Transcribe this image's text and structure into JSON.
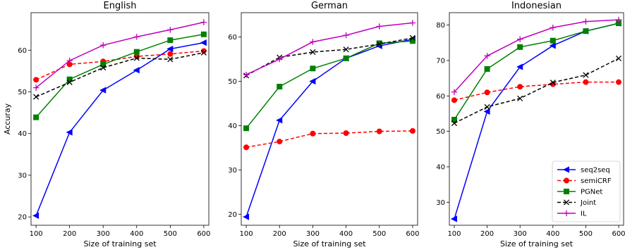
{
  "chart_data": [
    {
      "type": "line",
      "title": "English",
      "xlabel": "Size of training set",
      "ylabel": "Accuray",
      "x": [
        100,
        200,
        300,
        400,
        500,
        600
      ],
      "xlim": [
        85,
        615
      ],
      "ylim": [
        18,
        69
      ],
      "yticks": [
        20,
        30,
        40,
        50,
        60
      ],
      "series": [
        {
          "name": "seq2seq",
          "values": [
            20.3,
            40.3,
            50.4,
            55.2,
            60.3,
            61.8
          ]
        },
        {
          "name": "semiCRF",
          "values": [
            52.9,
            56.6,
            57.3,
            58.5,
            59.1,
            59.8
          ]
        },
        {
          "name": "PGNet",
          "values": [
            43.9,
            53.0,
            56.6,
            59.6,
            62.4,
            63.8
          ]
        },
        {
          "name": "Joint",
          "values": [
            48.8,
            52.3,
            55.8,
            58.1,
            57.8,
            59.4
          ]
        },
        {
          "name": "IL",
          "values": [
            51.0,
            57.5,
            61.2,
            63.2,
            64.9,
            66.7
          ]
        }
      ]
    },
    {
      "type": "line",
      "title": "German",
      "xlabel": "Size of training set",
      "ylabel": "",
      "x": [
        100,
        200,
        300,
        400,
        500,
        600
      ],
      "xlim": [
        85,
        615
      ],
      "ylim": [
        17.5,
        65.5
      ],
      "yticks": [
        20,
        30,
        40,
        50,
        60
      ],
      "series": [
        {
          "name": "seq2seq",
          "values": [
            19.4,
            41.2,
            50.0,
            55.2,
            58.0,
            59.5
          ]
        },
        {
          "name": "semiCRF",
          "values": [
            35.1,
            36.4,
            38.2,
            38.3,
            38.7,
            38.8
          ]
        },
        {
          "name": "PGNet",
          "values": [
            39.4,
            48.8,
            52.9,
            55.2,
            58.6,
            59.1
          ]
        },
        {
          "name": "Joint",
          "values": [
            51.3,
            55.4,
            56.6,
            57.2,
            58.4,
            59.8
          ]
        },
        {
          "name": "IL",
          "values": [
            51.5,
            55.0,
            58.9,
            60.4,
            62.4,
            63.2
          ]
        }
      ]
    },
    {
      "type": "line",
      "title": "Indonesian",
      "xlabel": "Size of training set",
      "ylabel": "",
      "x": [
        100,
        200,
        300,
        400,
        500,
        600
      ],
      "xlim": [
        85,
        615
      ],
      "ylim": [
        23.5,
        83.5
      ],
      "yticks": [
        30,
        40,
        50,
        60,
        70,
        80
      ],
      "legend": {
        "position": "lower-right",
        "entries": [
          "seq2seq",
          "semiCRF",
          "PGNet",
          "Joint",
          "IL"
        ]
      },
      "series": [
        {
          "name": "seq2seq",
          "values": [
            25.3,
            55.6,
            68.2,
            74.2,
            78.3,
            80.5
          ]
        },
        {
          "name": "semiCRF",
          "values": [
            58.8,
            61.0,
            62.6,
            63.3,
            63.9,
            63.9
          ]
        },
        {
          "name": "PGNet",
          "values": [
            53.3,
            67.6,
            73.8,
            75.6,
            78.3,
            80.5
          ]
        },
        {
          "name": "Joint",
          "values": [
            52.3,
            56.9,
            59.3,
            63.8,
            65.9,
            70.6
          ]
        },
        {
          "name": "IL",
          "values": [
            61.1,
            71.3,
            76.0,
            79.3,
            81.0,
            81.5
          ]
        }
      ]
    }
  ],
  "series_styles": [
    {
      "name": "seq2seq",
      "color": "#0000ff",
      "marker": "triangle-left",
      "dash": "solid"
    },
    {
      "name": "semiCRF",
      "color": "#ff0000",
      "marker": "circle",
      "dash": "dashed"
    },
    {
      "name": "PGNet",
      "color": "#008000",
      "marker": "square",
      "dash": "solid"
    },
    {
      "name": "Joint",
      "color": "#000000",
      "marker": "x",
      "dash": "dashed"
    },
    {
      "name": "IL",
      "color": "#bf00bf",
      "marker": "plus",
      "dash": "solid"
    }
  ]
}
